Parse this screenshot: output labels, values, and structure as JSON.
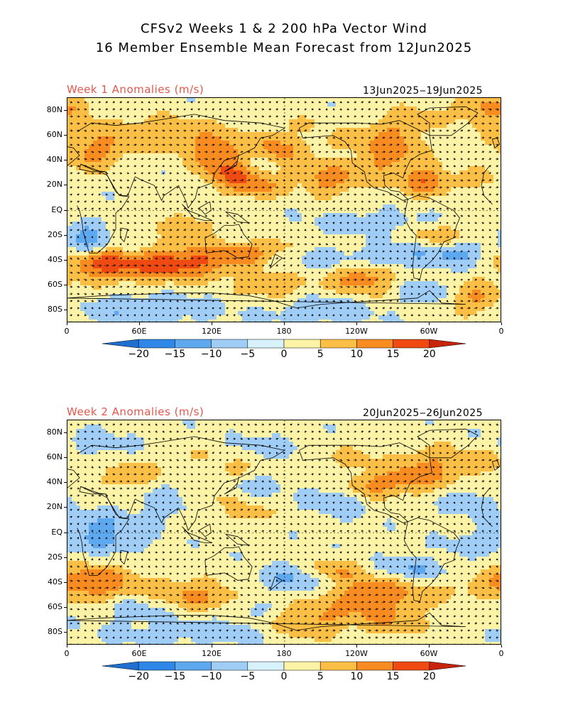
{
  "title_line1": "CFSv2 Weeks 1 & 2 200 hPa Vector Wind",
  "title_line2": "16 Member Ensemble Mean Forecast from 12Jun2025",
  "panels": [
    {
      "label": "Week 1 Anomalies (m/s)",
      "dates": "13Jun2025‒19Jun2025",
      "blobs": [
        [
          15,
          45,
          20,
          2,
          10
        ],
        [
          25,
          45,
          18,
          3,
          9
        ],
        [
          55,
          62,
          20,
          3,
          10
        ],
        [
          90,
          60,
          16,
          4,
          10
        ],
        [
          125,
          45,
          15,
          7,
          14
        ],
        [
          168,
          52,
          12,
          4,
          7
        ],
        [
          185,
          45,
          15,
          3,
          8
        ],
        [
          220,
          20,
          14,
          3,
          8
        ],
        [
          215,
          55,
          12,
          2,
          6
        ],
        [
          265,
          48,
          20,
          6,
          16
        ],
        [
          285,
          72,
          15,
          3,
          8
        ],
        [
          340,
          82,
          18,
          3,
          10
        ],
        [
          305,
          22,
          15,
          3,
          8
        ],
        [
          340,
          25,
          12,
          3,
          6
        ],
        [
          0,
          82,
          20,
          3,
          6
        ],
        [
          155,
          18,
          18,
          5,
          7
        ],
        [
          140,
          28,
          15,
          4,
          6
        ],
        [
          215,
          28,
          20,
          4,
          7
        ],
        [
          295,
          25,
          12,
          4,
          8
        ],
        [
          190,
          68,
          20,
          2,
          6
        ],
        [
          15,
          -22,
          10,
          -5,
          8
        ],
        [
          65,
          -45,
          30,
          5,
          10
        ],
        [
          25,
          -40,
          20,
          7,
          10
        ],
        [
          105,
          -40,
          28,
          6,
          10
        ],
        [
          30,
          -30,
          22,
          -4,
          6
        ],
        [
          145,
          -35,
          16,
          4,
          6
        ],
        [
          175,
          -28,
          15,
          3,
          6
        ],
        [
          170,
          -60,
          20,
          4,
          8
        ],
        [
          245,
          -48,
          22,
          8,
          12
        ],
        [
          230,
          -40,
          25,
          -5,
          8
        ],
        [
          265,
          -38,
          20,
          -5,
          8
        ],
        [
          305,
          -20,
          16,
          4,
          6
        ],
        [
          320,
          -35,
          18,
          -4,
          7
        ],
        [
          335,
          -70,
          20,
          5,
          10
        ],
        [
          300,
          -65,
          18,
          -4,
          7
        ],
        [
          210,
          -80,
          30,
          -3,
          8
        ],
        [
          60,
          -80,
          40,
          -3,
          10
        ],
        [
          250,
          -10,
          30,
          -3,
          6
        ],
        [
          100,
          -10,
          20,
          3,
          8
        ],
        [
          10,
          65,
          20,
          2,
          10
        ]
      ]
    },
    {
      "label": "Week 2 Anomalies (m/s)",
      "dates": "20Jun2025‒26Jun2025",
      "blobs": [
        [
          55,
          42,
          20,
          5,
          10
        ],
        [
          65,
          35,
          20,
          -3,
          8
        ],
        [
          135,
          50,
          12,
          3,
          7
        ],
        [
          100,
          62,
          14,
          2,
          6
        ],
        [
          125,
          30,
          18,
          3,
          8
        ],
        [
          145,
          35,
          18,
          -3,
          7
        ],
        [
          235,
          60,
          14,
          3,
          6
        ],
        [
          250,
          38,
          15,
          5,
          8
        ],
        [
          225,
          25,
          18,
          -3,
          8
        ],
        [
          300,
          52,
          22,
          5,
          12
        ],
        [
          280,
          40,
          14,
          3,
          8
        ],
        [
          345,
          58,
          15,
          3,
          8
        ],
        [
          330,
          25,
          14,
          -3,
          7
        ],
        [
          20,
          70,
          25,
          -2,
          8
        ],
        [
          170,
          70,
          20,
          -2,
          6
        ],
        [
          150,
          15,
          15,
          3,
          7
        ],
        [
          80,
          20,
          20,
          -2,
          8
        ],
        [
          20,
          5,
          24,
          -4,
          8
        ],
        [
          35,
          -8,
          20,
          -3,
          6
        ],
        [
          20,
          -40,
          25,
          7,
          10
        ],
        [
          105,
          -50,
          30,
          5,
          10
        ],
        [
          220,
          -30,
          15,
          4,
          6
        ],
        [
          185,
          -38,
          20,
          -4,
          7
        ],
        [
          255,
          -50,
          26,
          7,
          12
        ],
        [
          285,
          -30,
          22,
          -4,
          7
        ],
        [
          200,
          -70,
          22,
          5,
          10
        ],
        [
          270,
          -72,
          22,
          3,
          8
        ],
        [
          100,
          -80,
          50,
          -2,
          8
        ],
        [
          320,
          -45,
          20,
          2,
          7
        ],
        [
          335,
          -10,
          18,
          -2,
          6
        ],
        [
          60,
          -60,
          20,
          -3,
          7
        ],
        [
          150,
          -62,
          20,
          -2,
          6
        ]
      ]
    }
  ],
  "lat_ticks": [
    "80N",
    "60N",
    "40N",
    "20N",
    "EQ",
    "20S",
    "40S",
    "60S",
    "80S"
  ],
  "lon_ticks": [
    "0",
    "60E",
    "120E",
    "180",
    "120W",
    "60W",
    "0"
  ],
  "colorbar": {
    "labels": [
      "−20",
      "−15",
      "−10",
      "−5",
      "0",
      "5",
      "10",
      "15",
      "20"
    ],
    "colors": [
      "#1e6fd0",
      "#2f87e8",
      "#5ea8f0",
      "#9fcdf6",
      "#d8f2fb",
      "#fdf3a6",
      "#fcbf46",
      "#f88c21",
      "#ef4a12",
      "#c8240c"
    ]
  }
}
